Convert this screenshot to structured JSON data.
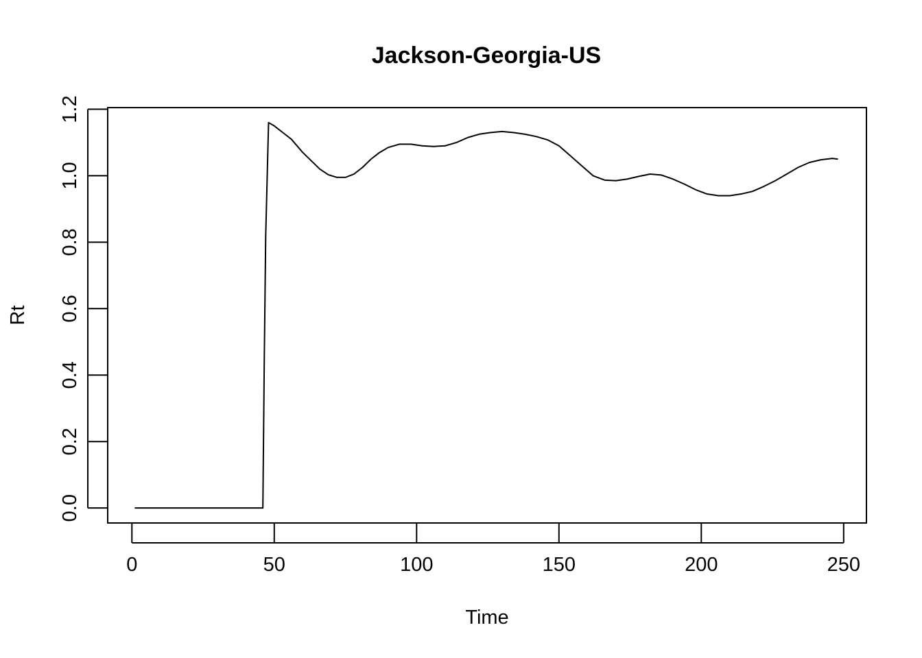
{
  "chart_data": {
    "type": "line",
    "title": "Jackson-Georgia-US",
    "xlabel": "Time",
    "ylabel": "Rt",
    "xlim": [
      -8.5,
      258
    ],
    "ylim": [
      -0.045,
      1.205
    ],
    "x_ticks": [
      0,
      50,
      100,
      150,
      200,
      250
    ],
    "x_tick_labels": [
      "0",
      "50",
      "100",
      "150",
      "200",
      "250"
    ],
    "y_ticks": [
      0.0,
      0.2,
      0.4,
      0.6,
      0.8,
      1.0,
      1.2
    ],
    "y_tick_labels": [
      "0.0",
      "0.2",
      "0.4",
      "0.6",
      "0.8",
      "1.0",
      "1.2"
    ],
    "grid": false,
    "legend": "none",
    "series": [
      {
        "color": "#000000",
        "x": [
          1,
          10,
          20,
          30,
          40,
          46,
          46.5,
          47,
          48,
          50,
          53,
          56,
          60,
          63,
          66,
          69,
          72,
          75,
          78,
          81,
          84,
          87,
          90,
          94,
          98,
          102,
          106,
          110,
          114,
          118,
          122,
          126,
          130,
          134,
          138,
          142,
          146,
          150,
          154,
          158,
          162,
          166,
          170,
          174,
          178,
          182,
          186,
          190,
          194,
          198,
          202,
          206,
          210,
          214,
          218,
          222,
          226,
          230,
          234,
          238,
          242,
          246,
          248
        ],
        "y": [
          0,
          0,
          0,
          0,
          0,
          0,
          0.45,
          0.82,
          1.16,
          1.15,
          1.13,
          1.11,
          1.07,
          1.045,
          1.02,
          1.003,
          0.995,
          0.995,
          1.005,
          1.025,
          1.05,
          1.07,
          1.085,
          1.095,
          1.095,
          1.09,
          1.088,
          1.09,
          1.1,
          1.115,
          1.125,
          1.13,
          1.133,
          1.13,
          1.125,
          1.118,
          1.108,
          1.09,
          1.06,
          1.03,
          1.0,
          0.987,
          0.985,
          0.99,
          0.998,
          1.005,
          1.002,
          0.99,
          0.975,
          0.958,
          0.945,
          0.94,
          0.94,
          0.945,
          0.953,
          0.968,
          0.985,
          1.005,
          1.025,
          1.04,
          1.048,
          1.052,
          1.05
        ]
      }
    ]
  }
}
